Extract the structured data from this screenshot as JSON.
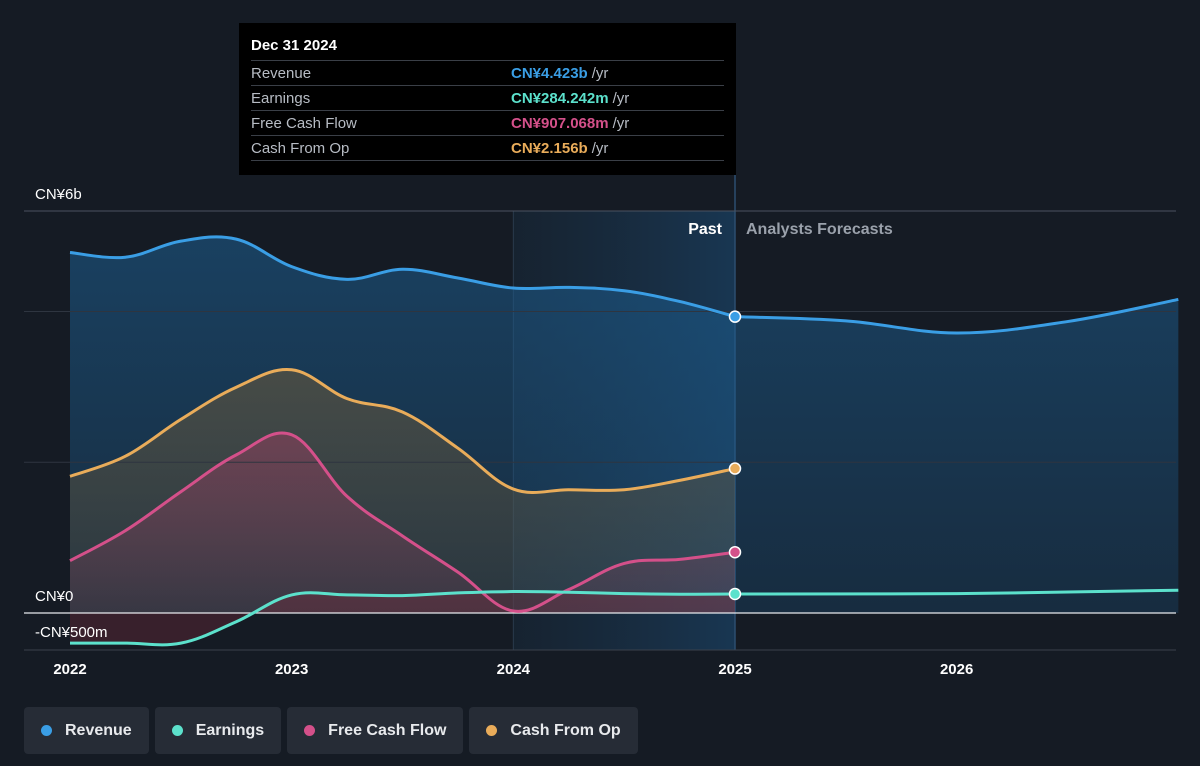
{
  "tooltip": {
    "date": "Dec 31 2024",
    "rows": [
      {
        "label": "Revenue",
        "value": "CN¥4.423b",
        "unit": "/yr",
        "color": "#3a9ee5"
      },
      {
        "label": "Earnings",
        "value": "CN¥284.242m",
        "unit": "/yr",
        "color": "#5ce1cc"
      },
      {
        "label": "Free Cash Flow",
        "value": "CN¥907.068m",
        "unit": "/yr",
        "color": "#d4508a"
      },
      {
        "label": "Cash From Op",
        "value": "CN¥2.156b",
        "unit": "/yr",
        "color": "#e9ac5a"
      }
    ]
  },
  "legend": [
    {
      "label": "Revenue",
      "color": "#3a9ee5"
    },
    {
      "label": "Earnings",
      "color": "#5ce1cc"
    },
    {
      "label": "Free Cash Flow",
      "color": "#d4508a"
    },
    {
      "label": "Cash From Op",
      "color": "#e9ac5a"
    }
  ],
  "chart_data": {
    "type": "line",
    "y_unit": "CN¥ billions",
    "y_tick_labels": [
      {
        "value": 6,
        "label": "CN¥6b"
      },
      {
        "value": 0,
        "label": "CN¥0"
      },
      {
        "value": -0.5,
        "label": "-CN¥500m"
      }
    ],
    "x_ticks": [
      2022,
      2023,
      2024,
      2025,
      2026
    ],
    "xlim": [
      2021.8,
      2027.0
    ],
    "ylim": [
      -0.55,
      6.0
    ],
    "gridlines": [
      6,
      4.5,
      2.25
    ],
    "past_label": "Past",
    "forecast_label": "Analysts Forecasts",
    "past_end": 2025.0,
    "highlight_start": 2024.0,
    "series": [
      {
        "name": "Revenue",
        "color": "#3a9ee5",
        "points": [
          [
            2022.0,
            5.38
          ],
          [
            2022.25,
            5.31
          ],
          [
            2022.5,
            5.55
          ],
          [
            2022.75,
            5.58
          ],
          [
            2023.0,
            5.17
          ],
          [
            2023.25,
            4.98
          ],
          [
            2023.5,
            5.13
          ],
          [
            2023.75,
            5.0
          ],
          [
            2024.0,
            4.85
          ],
          [
            2024.25,
            4.86
          ],
          [
            2024.5,
            4.81
          ],
          [
            2024.75,
            4.65
          ],
          [
            2025.0,
            4.423
          ]
        ],
        "forecast": [
          [
            2025.0,
            4.423
          ],
          [
            2025.5,
            4.36
          ],
          [
            2026.0,
            4.18
          ],
          [
            2026.5,
            4.35
          ],
          [
            2027.0,
            4.68
          ]
        ]
      },
      {
        "name": "Cash From Op",
        "color": "#e9ac5a",
        "points": [
          [
            2022.0,
            2.04
          ],
          [
            2022.25,
            2.34
          ],
          [
            2022.5,
            2.89
          ],
          [
            2022.75,
            3.37
          ],
          [
            2023.0,
            3.63
          ],
          [
            2023.25,
            3.2
          ],
          [
            2023.5,
            3.0
          ],
          [
            2023.75,
            2.46
          ],
          [
            2024.0,
            1.85
          ],
          [
            2024.25,
            1.84
          ],
          [
            2024.5,
            1.84
          ],
          [
            2024.75,
            1.98
          ],
          [
            2025.0,
            2.156
          ]
        ]
      },
      {
        "name": "Free Cash Flow",
        "color": "#d4508a",
        "points": [
          [
            2022.0,
            0.78
          ],
          [
            2022.25,
            1.23
          ],
          [
            2022.5,
            1.81
          ],
          [
            2022.75,
            2.36
          ],
          [
            2023.0,
            2.66
          ],
          [
            2023.25,
            1.74
          ],
          [
            2023.5,
            1.15
          ],
          [
            2023.75,
            0.61
          ],
          [
            2024.0,
            0.03
          ],
          [
            2024.25,
            0.35
          ],
          [
            2024.5,
            0.74
          ],
          [
            2024.75,
            0.8
          ],
          [
            2025.0,
            0.907
          ]
        ]
      },
      {
        "name": "Earnings",
        "color": "#5ce1cc",
        "points": [
          [
            2022.0,
            -0.45
          ],
          [
            2022.25,
            -0.45
          ],
          [
            2022.5,
            -0.45
          ],
          [
            2022.75,
            -0.13
          ],
          [
            2023.0,
            0.27
          ],
          [
            2023.25,
            0.27
          ],
          [
            2023.5,
            0.26
          ],
          [
            2023.75,
            0.3
          ],
          [
            2024.0,
            0.32
          ],
          [
            2024.25,
            0.31
          ],
          [
            2024.5,
            0.29
          ],
          [
            2024.75,
            0.28
          ],
          [
            2025.0,
            0.284
          ]
        ],
        "forecast": [
          [
            2025.0,
            0.284
          ],
          [
            2026.0,
            0.29
          ],
          [
            2027.0,
            0.34
          ]
        ]
      }
    ]
  }
}
